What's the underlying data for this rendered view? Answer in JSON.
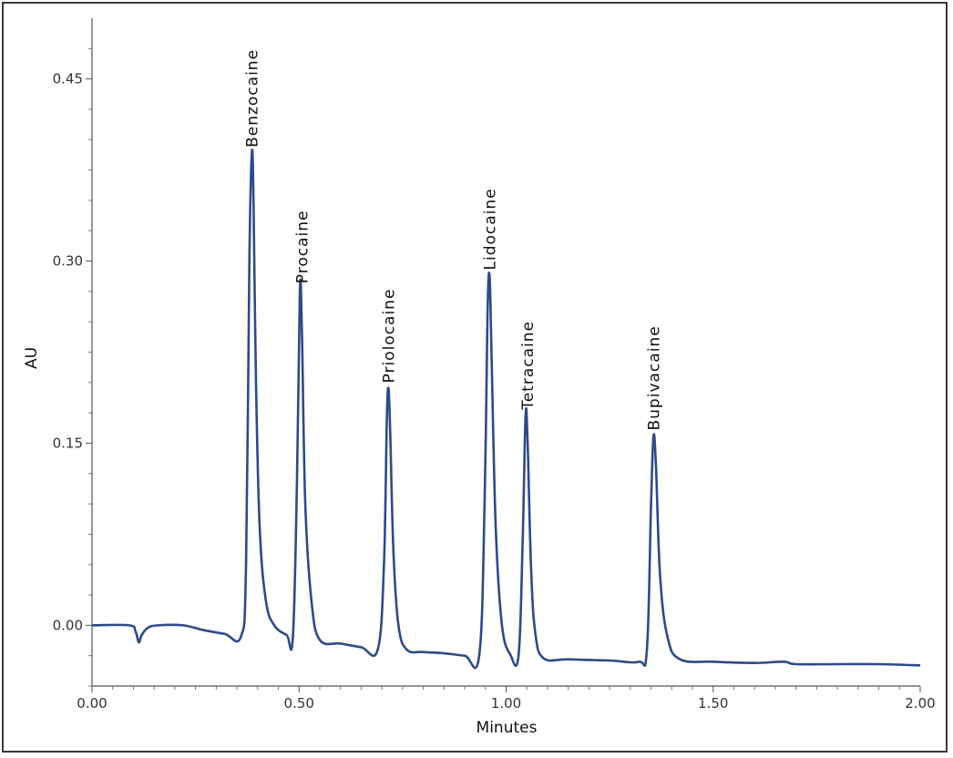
{
  "chart_data": {
    "type": "line",
    "title": "",
    "xlabel": "Minutes",
    "ylabel": "AU",
    "xlim": [
      0.0,
      2.0
    ],
    "ylim": [
      -0.05,
      0.5
    ],
    "x_ticks": [
      "0.00",
      "0.50",
      "1.00",
      "1.50",
      "2.00"
    ],
    "x_tick_values": [
      0.0,
      0.5,
      1.0,
      1.5,
      2.0
    ],
    "y_ticks": [
      "0.00",
      "0.15",
      "0.30",
      "0.45"
    ],
    "y_tick_values": [
      0.0,
      0.15,
      0.3,
      0.45
    ],
    "series": [
      {
        "color": "#2e4a8c",
        "x": [
          0.0,
          0.09,
          0.105,
          0.113,
          0.12,
          0.135,
          0.16,
          0.22,
          0.27,
          0.32,
          0.36,
          0.372,
          0.38,
          0.386,
          0.39,
          0.396,
          0.405,
          0.42,
          0.44,
          0.47,
          0.485,
          0.495,
          0.502,
          0.507,
          0.515,
          0.53,
          0.55,
          0.6,
          0.65,
          0.69,
          0.705,
          0.712,
          0.716,
          0.72,
          0.728,
          0.74,
          0.76,
          0.8,
          0.85,
          0.9,
          0.935,
          0.948,
          0.955,
          0.96,
          0.965,
          0.975,
          0.99,
          1.01,
          1.03,
          1.04,
          1.047,
          1.052,
          1.06,
          1.07,
          1.09,
          1.15,
          1.25,
          1.32,
          1.34,
          1.35,
          1.356,
          1.362,
          1.372,
          1.39,
          1.42,
          1.5,
          1.6,
          1.67,
          1.7,
          1.8,
          1.9,
          2.0
        ],
        "y": [
          0.0,
          0.0,
          -0.005,
          -0.014,
          -0.008,
          -0.002,
          0.0,
          0.0,
          -0.004,
          -0.007,
          -0.009,
          0.05,
          0.3,
          0.389,
          0.35,
          0.2,
          0.08,
          0.02,
          0.0,
          -0.008,
          -0.01,
          0.12,
          0.277,
          0.24,
          0.1,
          0.02,
          -0.012,
          -0.015,
          -0.018,
          -0.02,
          0.05,
          0.17,
          0.195,
          0.16,
          0.06,
          0.0,
          -0.02,
          -0.022,
          -0.023,
          -0.025,
          -0.025,
          0.1,
          0.255,
          0.288,
          0.22,
          0.08,
          0.0,
          -0.024,
          -0.025,
          0.07,
          0.173,
          0.15,
          0.05,
          -0.005,
          -0.027,
          -0.028,
          -0.029,
          -0.03,
          -0.02,
          0.1,
          0.156,
          0.13,
          0.04,
          -0.01,
          -0.028,
          -0.03,
          -0.031,
          -0.03,
          -0.032,
          -0.032,
          -0.032,
          -0.033
        ]
      }
    ],
    "annotations": [
      {
        "text": "Benzocaine",
        "x": 0.386,
        "y": 0.389
      },
      {
        "text": "Procaine",
        "x": 0.507,
        "y": 0.277
      },
      {
        "text": "Priolocaine",
        "x": 0.716,
        "y": 0.195
      },
      {
        "text": "Lidocaine",
        "x": 0.96,
        "y": 0.288
      },
      {
        "text": "Tetracaine",
        "x": 1.052,
        "y": 0.173
      },
      {
        "text": "Bupivacaine",
        "x": 1.356,
        "y": 0.156
      }
    ],
    "grid": false,
    "legend": "none"
  }
}
